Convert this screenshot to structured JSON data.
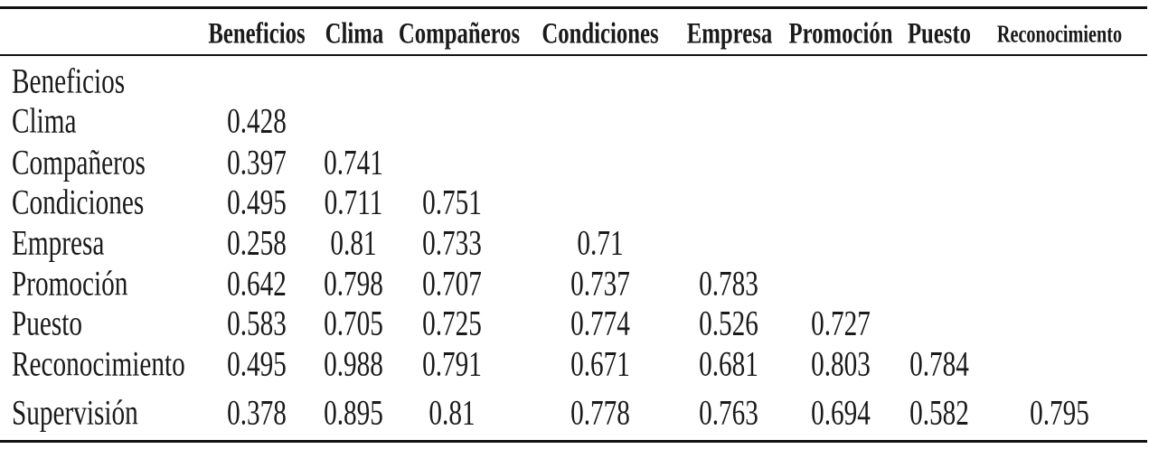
{
  "table": {
    "columns": [
      "Beneficios",
      "Clima",
      "Compañeros",
      "Condiciones",
      "Empresa",
      "Promoción",
      "Puesto",
      "Reconocimiento"
    ],
    "rows": [
      {
        "label": "Beneficios",
        "values": []
      },
      {
        "label": "Clima",
        "values": [
          "0.428"
        ]
      },
      {
        "label": "Compañeros",
        "values": [
          "0.397",
          "0.741"
        ]
      },
      {
        "label": "Condiciones",
        "values": [
          "0.495",
          "0.711",
          "0.751"
        ]
      },
      {
        "label": "Empresa",
        "values": [
          "0.258",
          "0.81",
          "0.733",
          "0.71"
        ]
      },
      {
        "label": "Promoción",
        "values": [
          "0.642",
          "0.798",
          "0.707",
          "0.737",
          "0.783"
        ]
      },
      {
        "label": "Puesto",
        "values": [
          "0.583",
          "0.705",
          "0.725",
          "0.774",
          "0.526",
          "0.727"
        ]
      },
      {
        "label": "Reconocimiento",
        "values": [
          "0.495",
          "0.988",
          "0.791",
          "0.671",
          "0.681",
          "0.803",
          "0.784"
        ]
      },
      {
        "label": "Supervisión",
        "values": [
          "0.378",
          "0.895",
          "0.81",
          "0.778",
          "0.763",
          "0.694",
          "0.582",
          "0.795"
        ]
      }
    ]
  },
  "colors": {
    "text": "#1a1a1a",
    "rule": "#111111",
    "background": "#ffffff"
  }
}
